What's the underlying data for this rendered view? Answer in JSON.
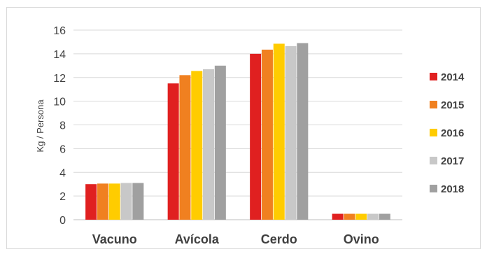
{
  "chart_data": {
    "type": "bar",
    "title": "",
    "xlabel": "",
    "ylabel": "Kg / Persona",
    "ylim": [
      0,
      16
    ],
    "yticks": [
      0,
      2,
      4,
      6,
      8,
      10,
      12,
      14,
      16
    ],
    "grid": true,
    "legend": "right",
    "categories": [
      "Vacuno",
      "Avícola",
      "Cerdo",
      "Ovino"
    ],
    "series": [
      {
        "name": "2014",
        "color": "#e02020",
        "values": [
          3.0,
          11.5,
          14.0,
          0.5
        ]
      },
      {
        "name": "2015",
        "color": "#f08020",
        "values": [
          3.05,
          12.2,
          14.35,
          0.5
        ]
      },
      {
        "name": "2016",
        "color": "#ffcc00",
        "values": [
          3.05,
          12.55,
          14.85,
          0.5
        ]
      },
      {
        "name": "2017",
        "color": "#c8c8c8",
        "values": [
          3.1,
          12.7,
          14.65,
          0.5
        ]
      },
      {
        "name": "2018",
        "color": "#a0a0a0",
        "values": [
          3.1,
          13.0,
          14.9,
          0.5
        ]
      }
    ]
  }
}
